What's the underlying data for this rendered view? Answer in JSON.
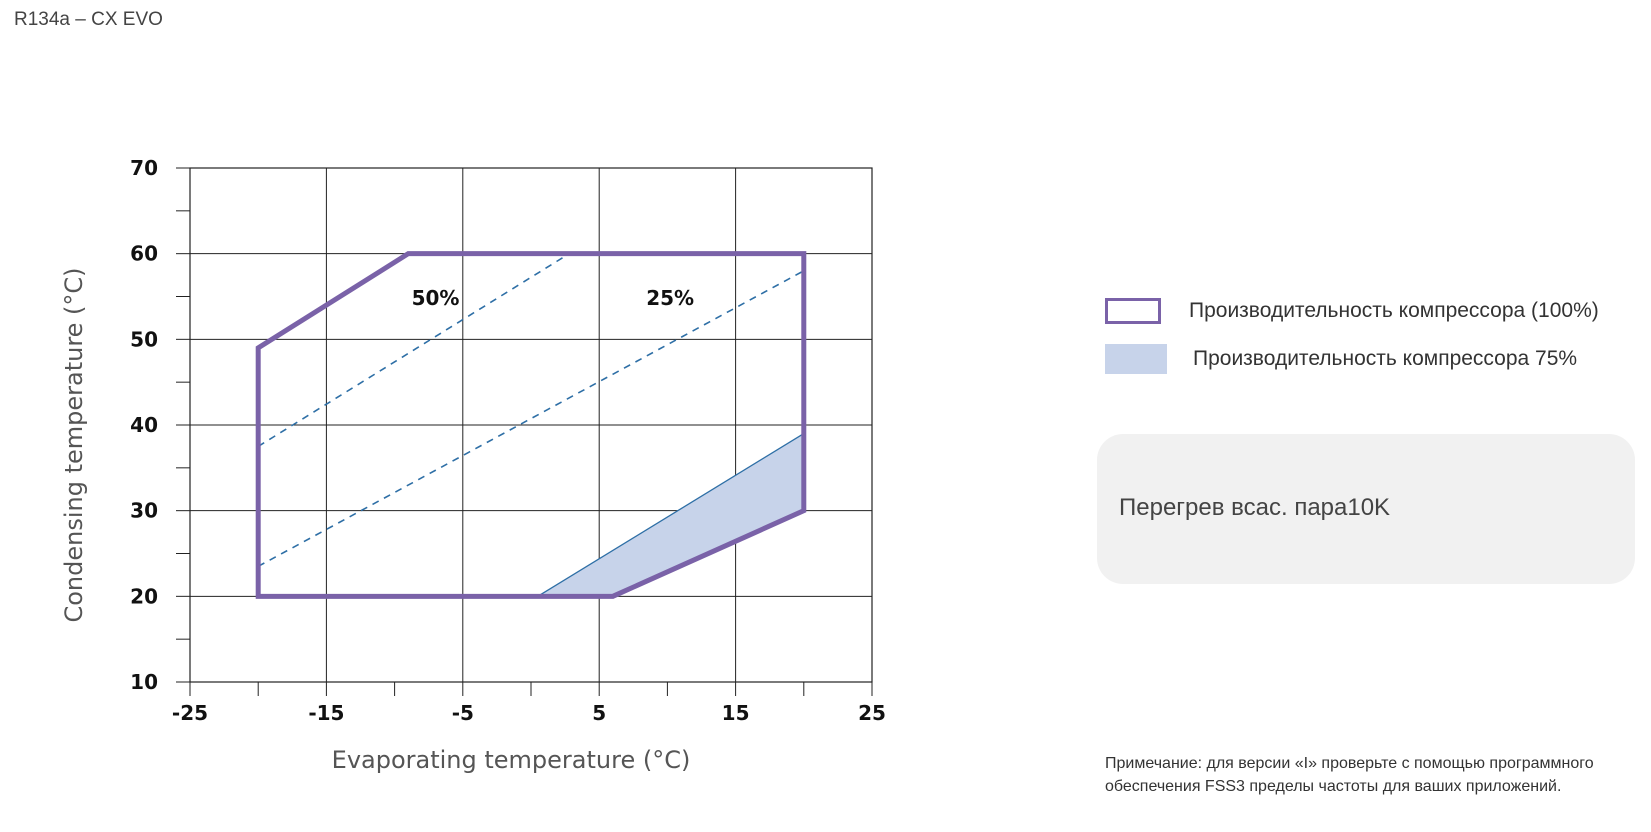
{
  "header": {
    "title": "R134a – CX EVO"
  },
  "chart_data": {
    "type": "area",
    "xlabel": "Evaporating temperature (°C)",
    "ylabel": "Condensing temperature (°C)",
    "xlim": [
      -25,
      25
    ],
    "ylim": [
      10,
      70
    ],
    "x_ticks": [
      -25,
      -15,
      -5,
      5,
      15,
      25
    ],
    "y_ticks": [
      10,
      20,
      30,
      40,
      50,
      60,
      70
    ],
    "grid": true,
    "series": [
      {
        "name": "Производительность компрессора (100%)",
        "kind": "envelope-outline",
        "color": "#7a62a8",
        "x": [
          -20,
          -20,
          -9,
          20,
          20,
          6,
          -20
        ],
        "y": [
          20,
          49,
          60,
          60,
          30,
          20,
          20
        ]
      },
      {
        "name": "Производительность компрессора 75%",
        "kind": "filled-region",
        "color": "#c7d3ea",
        "x": [
          0.5,
          20,
          20,
          6
        ],
        "y": [
          20,
          39,
          30,
          20
        ]
      },
      {
        "kind": "dashed-boundary",
        "color": "#2e6fa6",
        "x": [
          -20,
          2.8
        ],
        "y": [
          37.5,
          60
        ]
      },
      {
        "kind": "dashed-boundary",
        "color": "#2e6fa6",
        "x": [
          -20,
          20
        ],
        "y": [
          23.5,
          58
        ]
      }
    ],
    "annotations": [
      {
        "text": "50%",
        "x": -7,
        "y": 54
      },
      {
        "text": "25%",
        "x": 10.2,
        "y": 54
      }
    ]
  },
  "legend": {
    "items": [
      {
        "label": "Производительность компрессора (100%)"
      },
      {
        "label": "Производительность компрессора 75%"
      }
    ]
  },
  "info_box": {
    "text": "Перегрев всас. пара10K"
  },
  "note": {
    "text": "Примечание: для версии «I» проверьте с помощью программного обеспечения FSS3 пределы частоты для ваших приложений."
  }
}
